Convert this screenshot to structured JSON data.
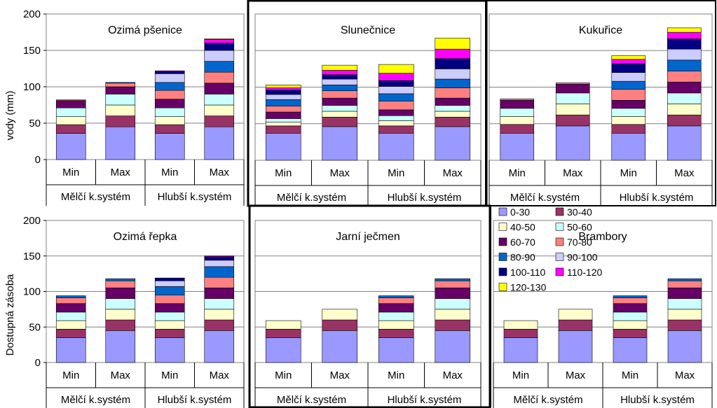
{
  "y_axis_label_top": "vody (mm)",
  "y_axis_label_bottom": "Dostupná zásoba",
  "legend_labels": [
    "0-30",
    "30-40",
    "40-50",
    "50-60",
    "60-70",
    "70-80",
    "80-90",
    "90-100",
    "100-110",
    "110-120",
    "120-130"
  ],
  "colors": [
    "#9999ff",
    "#993366",
    "#ffffcc",
    "#ccffff",
    "#660066",
    "#ff8080",
    "#0066cc",
    "#ccccff",
    "#000080",
    "#ff00ff",
    "#ffff00"
  ],
  "chart_data": [
    {
      "type": "bar",
      "stacked": true,
      "title": "Ozimá pšenice",
      "categories": [
        "Min",
        "Max",
        "Min",
        "Max"
      ],
      "groups": [
        "Mělčí k.systém",
        "Hlubší  k.systém"
      ],
      "ylim": [
        0,
        200
      ],
      "yticks": [
        "0",
        "50",
        "100",
        "150",
        "200"
      ],
      "stacks": [
        [
          36,
          12,
          11,
          12,
          10,
          1
        ],
        [
          45,
          15,
          15,
          15,
          10,
          5,
          1
        ],
        [
          36,
          12,
          11,
          12,
          12,
          12,
          11,
          12,
          3,
          1
        ],
        [
          45,
          15,
          15,
          15,
          15,
          15,
          15,
          15,
          10,
          5,
          1
        ]
      ]
    },
    {
      "type": "bar",
      "stacked": true,
      "title": "Slunečnice",
      "categories": [
        "Min",
        "Max",
        "Min",
        "Max"
      ],
      "groups": [
        "Mělčí k.systém",
        "Hlubší  k.systém"
      ],
      "ylim": [
        0,
        200
      ],
      "yticks": [],
      "stacks": [
        [
          37,
          10,
          5,
          5,
          9,
          8,
          9,
          7,
          6,
          3,
          4
        ],
        [
          46,
          13,
          8,
          8,
          10,
          10,
          8,
          8,
          6,
          6,
          7
        ],
        [
          37,
          10,
          7,
          7,
          8,
          12,
          10,
          10,
          8,
          10,
          12
        ],
        [
          46,
          13,
          8,
          8,
          10,
          14,
          12,
          14,
          14,
          13,
          15
        ]
      ]
    },
    {
      "type": "bar",
      "stacked": true,
      "title": "Kukuřice",
      "categories": [
        "Min",
        "Max",
        "Min",
        "Max"
      ],
      "groups": [
        "Mělčí k.systém",
        "Hlubší  k.systém"
      ],
      "ylim": [
        0,
        200
      ],
      "yticks": [],
      "stacks": [
        [
          37,
          12,
          11,
          11,
          11,
          2
        ],
        [
          47,
          15,
          15,
          15,
          12,
          2
        ],
        [
          37,
          12,
          11,
          11,
          11,
          15,
          11,
          12,
          12,
          6,
          5
        ],
        [
          47,
          15,
          15,
          15,
          15,
          15,
          15,
          15,
          14,
          9,
          6
        ]
      ]
    },
    {
      "type": "bar",
      "stacked": true,
      "title": "Ozimá řepka",
      "categories": [
        "Min",
        "Max",
        "Min",
        "Max"
      ],
      "groups": [
        "Mělčí k.systém",
        "Hlubší  k.systém"
      ],
      "ylim": [
        0,
        200
      ],
      "yticks": [
        "0",
        "50",
        "100",
        "150",
        "200"
      ],
      "stacks": [
        [
          35,
          12,
          12,
          12,
          12,
          8,
          3
        ],
        [
          45,
          15,
          15,
          15,
          15,
          10,
          3
        ],
        [
          35,
          12,
          12,
          12,
          12,
          12,
          12,
          8,
          4
        ],
        [
          45,
          15,
          15,
          15,
          15,
          15,
          15,
          9,
          5,
          1
        ]
      ]
    },
    {
      "type": "bar",
      "stacked": true,
      "title": "Jarní ječmen",
      "categories": [
        "Min",
        "Max",
        "Min",
        "Max"
      ],
      "groups": [
        "Mělčí k.systém",
        "Hlubší  k.systém"
      ],
      "ylim": [
        0,
        200
      ],
      "yticks": [],
      "stacks": [
        [
          35,
          12,
          12
        ],
        [
          45,
          15,
          15
        ],
        [
          35,
          12,
          12,
          12,
          12,
          8,
          3
        ],
        [
          45,
          15,
          15,
          15,
          15,
          10,
          3
        ]
      ]
    },
    {
      "type": "bar",
      "stacked": true,
      "title": "Brambory",
      "categories": [
        "Min",
        "Max",
        "Min",
        "Max"
      ],
      "groups": [
        "Mělčí k.systém",
        "Hlubší  k.systém"
      ],
      "ylim": [
        0,
        200
      ],
      "yticks": [],
      "stacks": [
        [
          35,
          12,
          12
        ],
        [
          45,
          15,
          15
        ],
        [
          35,
          12,
          12,
          12,
          12,
          8,
          3
        ],
        [
          45,
          15,
          15,
          15,
          15,
          10,
          3
        ]
      ]
    }
  ]
}
